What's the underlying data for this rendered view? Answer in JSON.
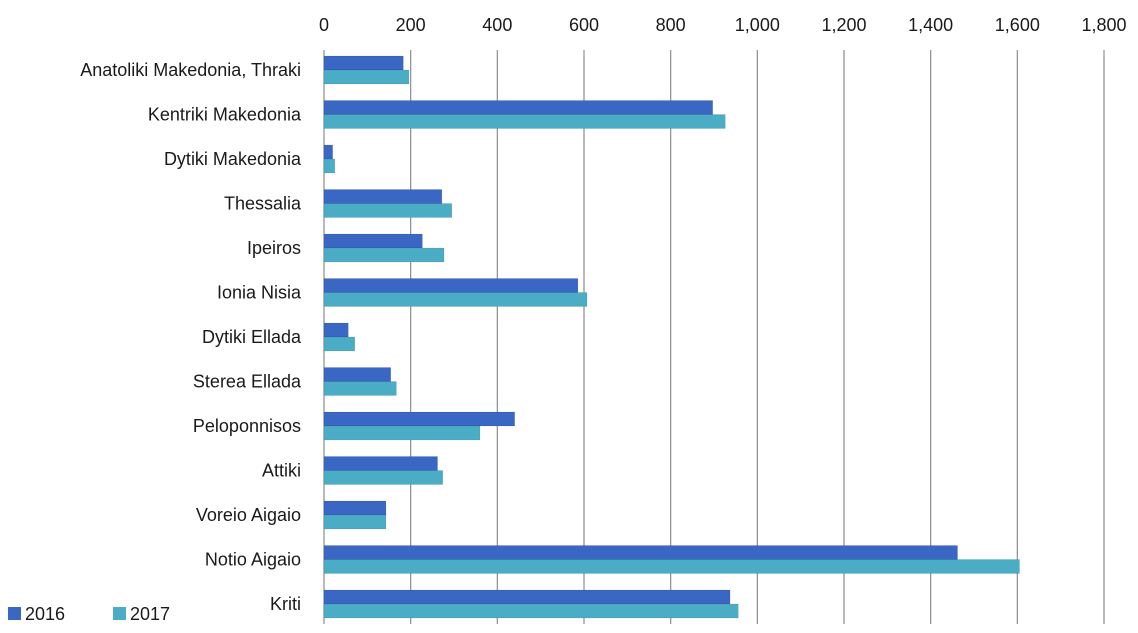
{
  "chart_data": {
    "type": "bar",
    "orientation": "horizontal",
    "title": "",
    "xlabel": "",
    "ylabel": "",
    "xlim": [
      0,
      1800
    ],
    "x_ticks": [
      "0",
      "200",
      "400",
      "600",
      "800",
      "1,000",
      "1,200",
      "1,400",
      "1,600",
      "1,800"
    ],
    "x_tick_values": [
      0,
      200,
      400,
      600,
      800,
      1000,
      1200,
      1400,
      1600,
      1800
    ],
    "x_axis_position": "top",
    "grid": "vertical",
    "legend_position": "bottom-left",
    "categories": [
      "Anatoliki Makedonia, Thraki",
      "Kentriki Makedonia",
      "Dytiki Makedonia",
      "Thessalia",
      "Ipeiros",
      "Ionia Nisia",
      "Dytiki Ellada",
      "Sterea Ellada",
      "Peloponnisos",
      "Attiki",
      "Voreio Aigaio",
      "Notio Aigaio",
      "Kriti"
    ],
    "series": [
      {
        "name": "2016",
        "color": "#3a66c4",
        "values": [
          183,
          897,
          20,
          272,
          227,
          586,
          56,
          154,
          440,
          262,
          143,
          1462,
          937
        ]
      },
      {
        "name": "2017",
        "color": "#4bacc6",
        "values": [
          196,
          926,
          25,
          295,
          277,
          607,
          71,
          167,
          360,
          274,
          143,
          1605,
          956
        ]
      }
    ]
  }
}
